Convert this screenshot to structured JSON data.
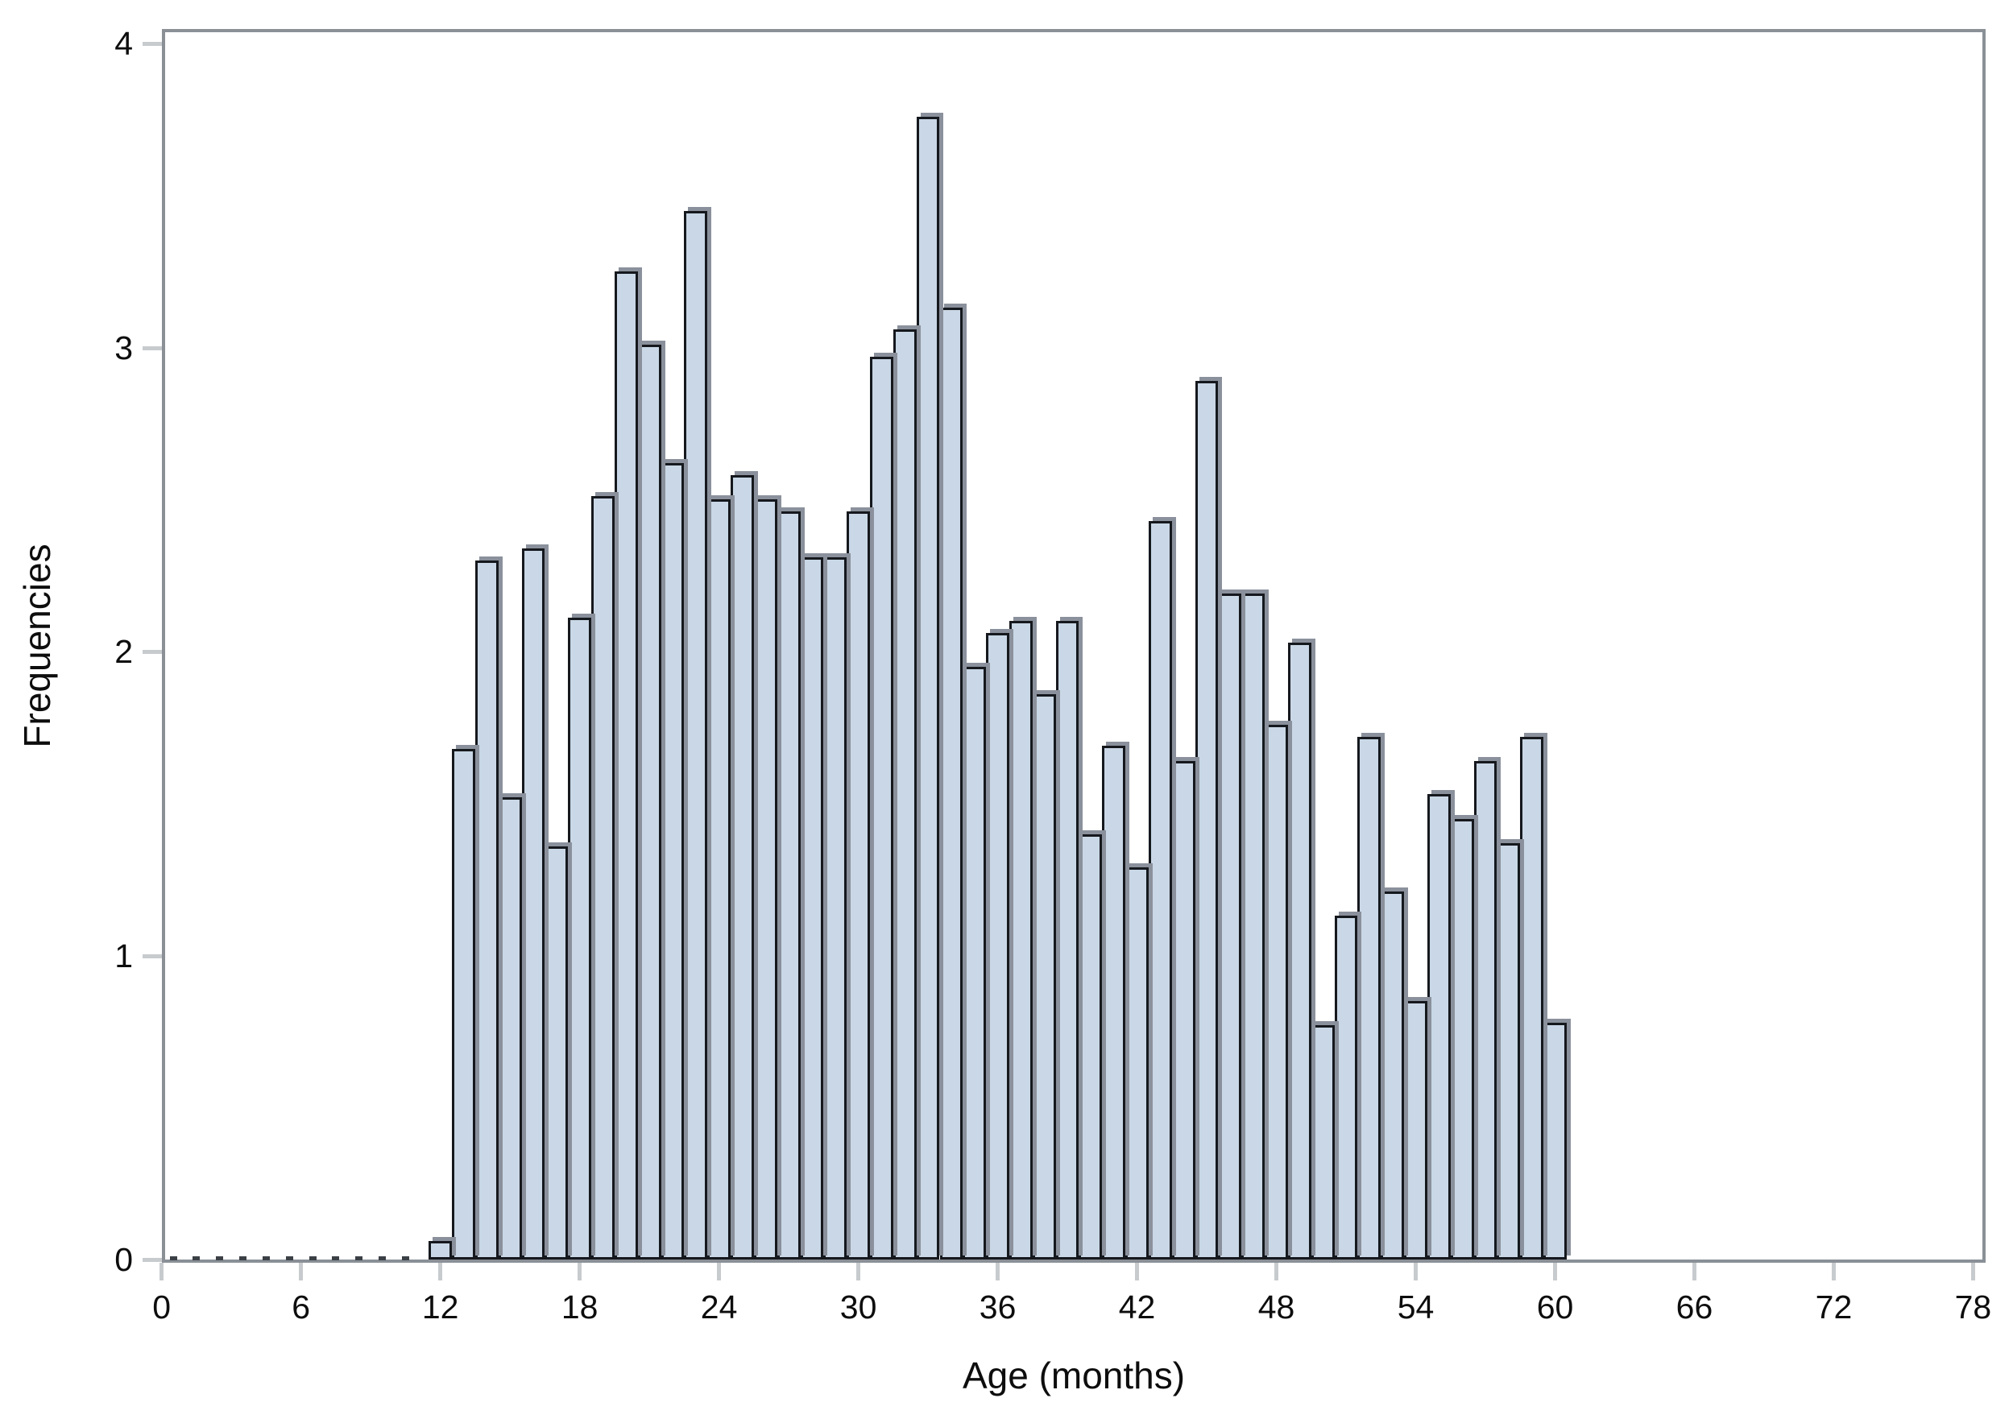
{
  "figure": {
    "background": "#ffffff",
    "frame_color": "#8a9096",
    "major_tick_color": "#c7cbce",
    "text_color": "#0d0d0d"
  },
  "chart_data": {
    "type": "bar",
    "subtype": "histogram",
    "xlabel": "Age (months)",
    "ylabel": "Frequencies",
    "x_ticks": [
      0,
      6,
      12,
      18,
      24,
      30,
      36,
      42,
      48,
      54,
      60,
      66,
      72,
      78
    ],
    "y_ticks": [
      0,
      1,
      2,
      3,
      4
    ],
    "xlim": [
      0,
      78.5
    ],
    "ylim": [
      0,
      4.05
    ],
    "grid": false,
    "legend_position": "none",
    "bin_width": 1,
    "bar_fill": "#c9d7e6",
    "bar_border": "#15181d",
    "bar_shadow": "#8b919c",
    "bin_midpoints": [
      12,
      13,
      14,
      15,
      16,
      17,
      18,
      19,
      20,
      21,
      22,
      23,
      24,
      25,
      26,
      27,
      28,
      29,
      30,
      31,
      32,
      33,
      34,
      35,
      36,
      37,
      38,
      39,
      40,
      41,
      42,
      43,
      44,
      45,
      46,
      47,
      48,
      49,
      50,
      51,
      52,
      53,
      54,
      55,
      56,
      57,
      58,
      59,
      60
    ],
    "values": [
      0.06,
      1.68,
      2.3,
      1.52,
      2.34,
      1.36,
      2.11,
      2.51,
      3.25,
      3.01,
      2.62,
      3.45,
      2.5,
      2.58,
      2.5,
      2.46,
      2.31,
      2.31,
      2.46,
      2.97,
      3.06,
      3.76,
      3.13,
      1.95,
      2.06,
      2.1,
      1.86,
      2.1,
      1.4,
      1.69,
      1.29,
      2.43,
      1.64,
      2.89,
      2.19,
      2.19,
      1.76,
      2.03,
      0.77,
      1.13,
      1.72,
      1.21,
      0.85,
      1.53,
      1.45,
      1.64,
      1.37,
      1.72,
      0.78
    ],
    "empty_bin_marks": [
      0.5,
      1.5,
      2.5,
      3.5,
      4.5,
      5.5,
      6.5,
      7.5,
      8.5,
      9.5,
      10.5
    ]
  }
}
